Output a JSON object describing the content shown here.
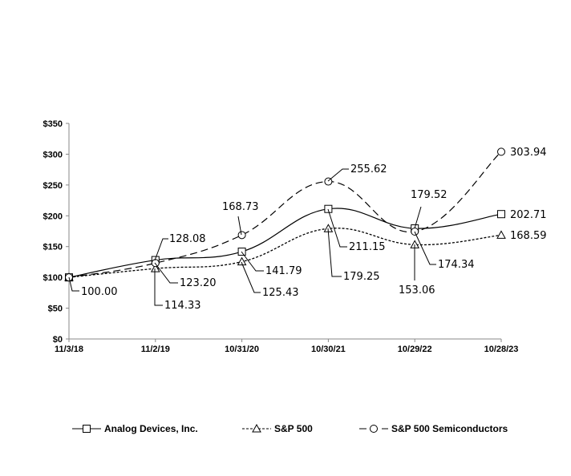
{
  "chart_data": {
    "type": "line",
    "title": "",
    "xlabel": "",
    "ylabel": "",
    "categories": [
      "11/3/18",
      "11/2/19",
      "10/31/20",
      "10/30/21",
      "10/29/22",
      "10/28/23"
    ],
    "ylim": [
      0,
      350
    ],
    "yticks": [
      "$0",
      "$50",
      "$100",
      "$150",
      "$200",
      "$250",
      "$300",
      "$350"
    ],
    "ytick_values": [
      0,
      50,
      100,
      150,
      200,
      250,
      300,
      350
    ],
    "grid": false,
    "legend_position": "bottom",
    "smooth": true,
    "series": [
      {
        "name": "Analog Devices, Inc.",
        "marker": "square",
        "dash": "solid",
        "color": "#000000",
        "values": [
          100.0,
          128.08,
          141.79,
          211.15,
          179.52,
          202.71
        ],
        "labels": [
          "100.00",
          "128.08",
          "141.79",
          "211.15",
          "179.52",
          "202.71"
        ]
      },
      {
        "name": "S&P 500",
        "marker": "triangle",
        "dash": "dotted",
        "color": "#000000",
        "values": [
          100.0,
          114.33,
          125.43,
          179.25,
          153.06,
          168.59
        ],
        "labels": [
          "",
          "114.33",
          "125.43",
          "179.25",
          "153.06",
          "168.59"
        ]
      },
      {
        "name": "S&P 500 Semiconductors",
        "marker": "circle",
        "dash": "dashed",
        "color": "#000000",
        "values": [
          100.0,
          123.2,
          168.73,
          255.62,
          174.34,
          303.94
        ],
        "labels": [
          "",
          "123.20",
          "168.73",
          "255.62",
          "174.34",
          "303.94"
        ]
      }
    ]
  }
}
